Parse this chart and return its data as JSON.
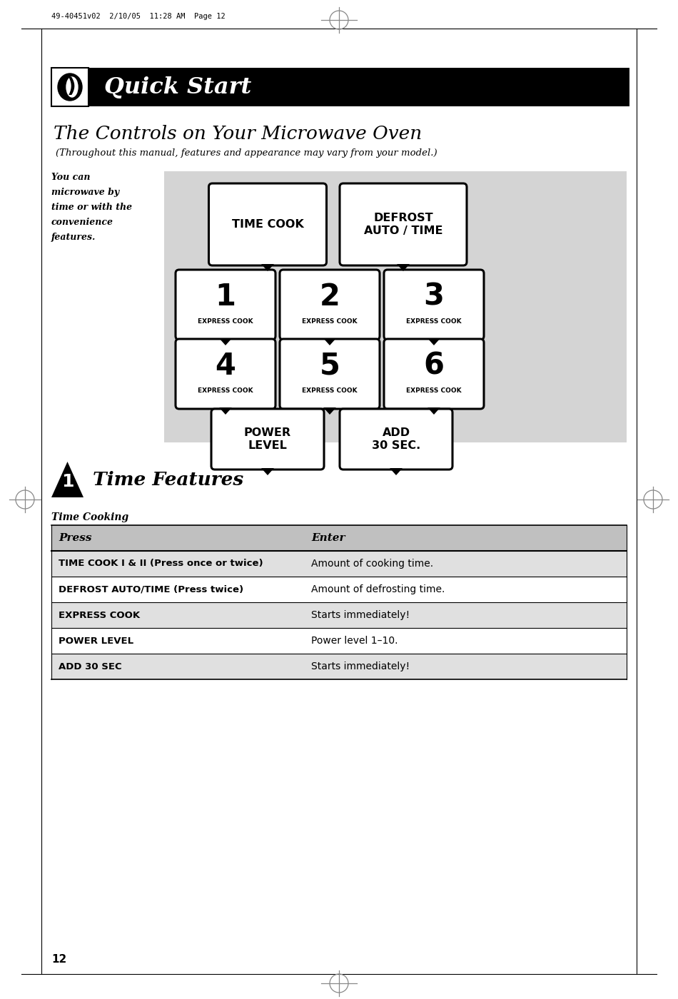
{
  "page_header": "49-40451v02  2/10/05  11:28 AM  Page 12",
  "section_title": "Quick Start",
  "main_title": "The Controls on Your Microwave Oven",
  "subtitle": "(Throughout this manual, features and appearance may vary from your model.)",
  "side_note_lines": [
    "You can",
    "microwave by",
    "time or with the",
    "convenience",
    "features."
  ],
  "panel_bg": "#d4d4d4",
  "button_bg": "#ffffff",
  "button_border": "#000000",
  "buttons_row1": [
    "TIME COOK",
    "DEFROST\nAUTO / TIME"
  ],
  "buttons_row2_nums": [
    "1",
    "2",
    "3"
  ],
  "buttons_row3_nums": [
    "4",
    "5",
    "6"
  ],
  "express_cook_label": "EXPRESS COOK",
  "buttons_row4": [
    "POWER\nLEVEL",
    "ADD\n30 SEC."
  ],
  "section_num": "1",
  "section_name": "Time Features",
  "table_title": "Time Cooking",
  "table_header": [
    "Press",
    "Enter"
  ],
  "table_rows": [
    [
      "TIME COOK I & II (Press once or twice)",
      "Amount of cooking time."
    ],
    [
      "DEFROST AUTO/TIME (Press twice)",
      "Amount of defrosting time."
    ],
    [
      "EXPRESS COOK",
      "Starts immediately!"
    ],
    [
      "POWER LEVEL",
      "Power level 1–10."
    ],
    [
      "ADD 30 SEC",
      "Starts immediately!"
    ]
  ],
  "page_number": "12",
  "header_bg": "#000000",
  "header_text_color": "#ffffff",
  "table_header_bg": "#c0c0c0",
  "table_row_bg_alt": "#e0e0e0",
  "table_row_bg": "#ffffff",
  "border_color": "#000000",
  "reg_color": "#888888"
}
